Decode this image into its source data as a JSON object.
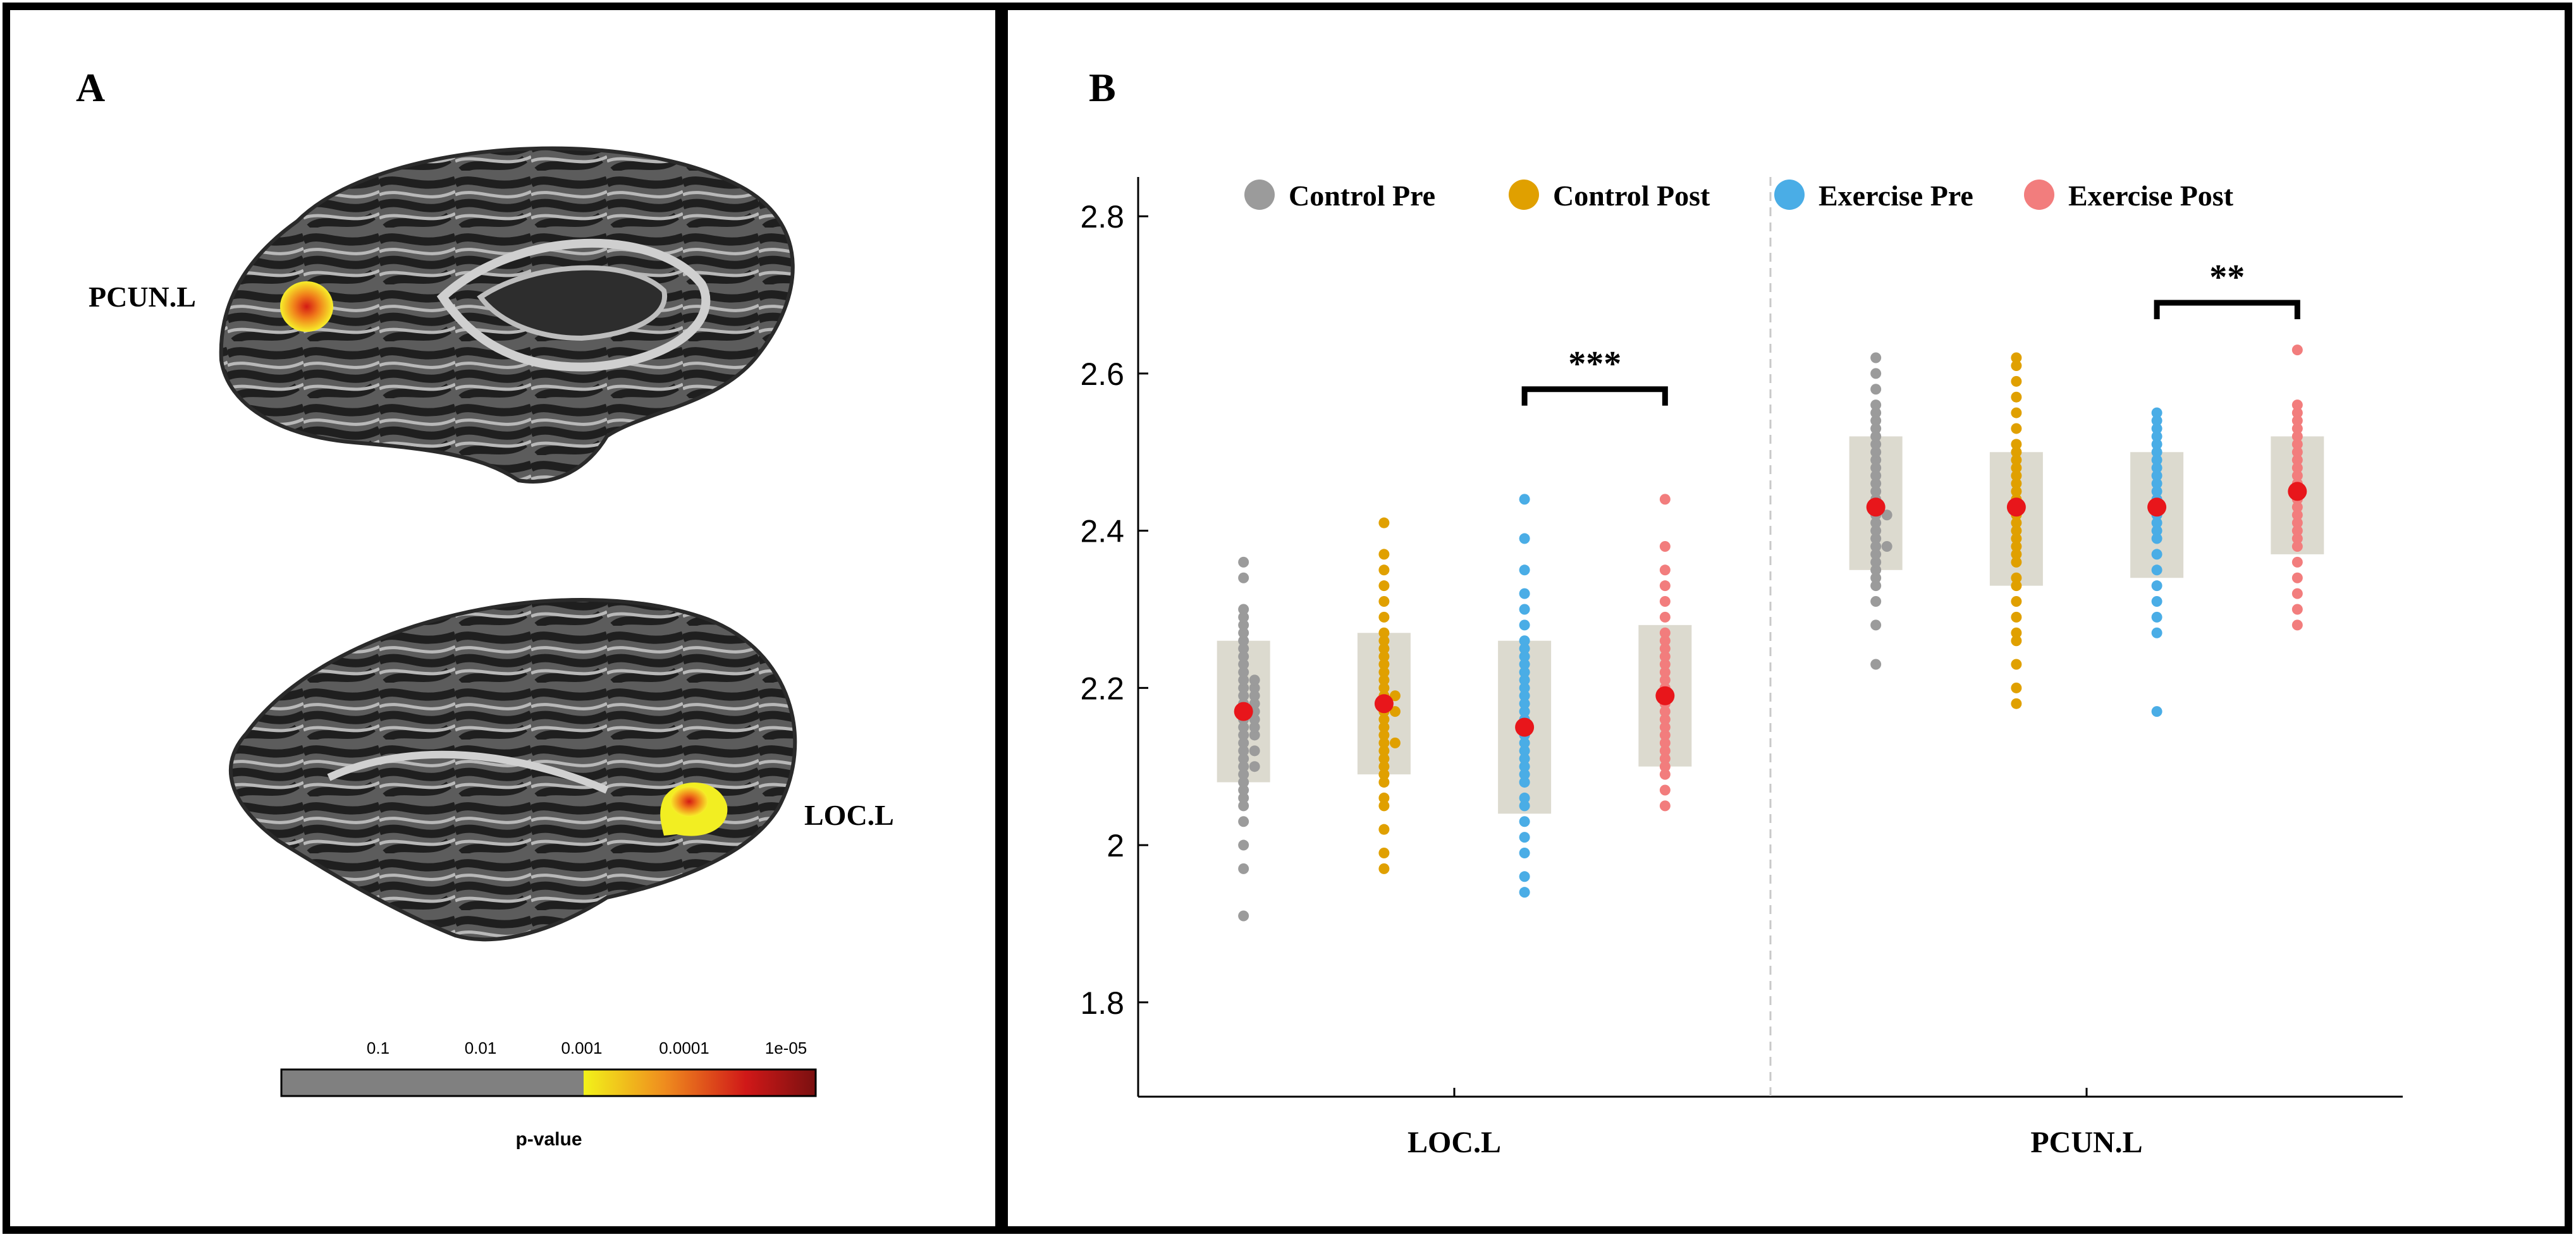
{
  "panel_a": {
    "label": "A",
    "region_top": "PCUN.L",
    "region_bottom": "LOC.L",
    "colorbar": {
      "ticks": [
        "0.1",
        "0.01",
        "0.001",
        "0.0001",
        "1e-05"
      ],
      "title": "p-value",
      "colors": {
        "gray": "#808080",
        "yellow": "#f2f21a",
        "orange": "#ef8c1e",
        "red": "#d01818",
        "darkred": "#7a1010"
      }
    }
  },
  "panel_b": {
    "label": "B"
  },
  "chart_data": {
    "type": "scatter",
    "subtype": "dot-strip with mean and interval box",
    "title": "",
    "xlabel": "",
    "ylabel": "",
    "categories": [
      "LOC.L",
      "PCUN.L"
    ],
    "ylim": [
      1.68,
      2.85
    ],
    "yticks": [
      1.8,
      2,
      2.2,
      2.4,
      2.6,
      2.8
    ],
    "ytick_labels": [
      "1.8",
      "2",
      "2.2",
      "2.4",
      "2.6",
      "2.8"
    ],
    "legend_position": "top",
    "mean_color": "#e8161b",
    "box_color": "#d6d3c7",
    "series": [
      {
        "name": "Control Pre",
        "color": "#9b9b9b",
        "groups": [
          {
            "category": "LOC.L",
            "mean": 2.17,
            "box": [
              2.08,
              2.26
            ],
            "points": [
              1.91,
              1.97,
              2.0,
              2.03,
              2.05,
              2.06,
              2.07,
              2.08,
              2.09,
              2.1,
              2.1,
              2.11,
              2.12,
              2.12,
              2.13,
              2.14,
              2.14,
              2.15,
              2.15,
              2.16,
              2.16,
              2.17,
              2.17,
              2.18,
              2.18,
              2.19,
              2.19,
              2.2,
              2.2,
              2.21,
              2.21,
              2.22,
              2.23,
              2.24,
              2.25,
              2.26,
              2.27,
              2.28,
              2.29,
              2.3,
              2.34,
              2.36
            ]
          },
          {
            "category": "PCUN.L",
            "mean": 2.43,
            "box": [
              2.35,
              2.52
            ],
            "points": [
              2.23,
              2.28,
              2.31,
              2.33,
              2.34,
              2.35,
              2.36,
              2.37,
              2.38,
              2.38,
              2.39,
              2.4,
              2.41,
              2.42,
              2.42,
              2.43,
              2.44,
              2.45,
              2.46,
              2.47,
              2.48,
              2.49,
              2.5,
              2.51,
              2.52,
              2.53,
              2.54,
              2.55,
              2.56,
              2.58,
              2.6,
              2.62
            ]
          }
        ]
      },
      {
        "name": "Control Post",
        "color": "#e0a000",
        "groups": [
          {
            "category": "LOC.L",
            "mean": 2.18,
            "box": [
              2.09,
              2.27
            ],
            "points": [
              1.97,
              1.99,
              2.02,
              2.05,
              2.06,
              2.08,
              2.09,
              2.1,
              2.11,
              2.12,
              2.13,
              2.13,
              2.14,
              2.15,
              2.16,
              2.17,
              2.17,
              2.18,
              2.19,
              2.19,
              2.2,
              2.21,
              2.22,
              2.23,
              2.24,
              2.25,
              2.26,
              2.27,
              2.29,
              2.31,
              2.33,
              2.35,
              2.37,
              2.41
            ]
          },
          {
            "category": "PCUN.L",
            "mean": 2.43,
            "box": [
              2.33,
              2.5
            ],
            "points": [
              2.18,
              2.2,
              2.23,
              2.26,
              2.27,
              2.29,
              2.31,
              2.33,
              2.34,
              2.36,
              2.37,
              2.38,
              2.39,
              2.4,
              2.41,
              2.42,
              2.43,
              2.44,
              2.45,
              2.46,
              2.47,
              2.48,
              2.49,
              2.5,
              2.51,
              2.53,
              2.55,
              2.57,
              2.59,
              2.61,
              2.62
            ]
          }
        ]
      },
      {
        "name": "Exercise Pre",
        "color": "#4aade6",
        "groups": [
          {
            "category": "LOC.L",
            "mean": 2.15,
            "box": [
              2.04,
              2.26
            ],
            "points": [
              1.94,
              1.96,
              1.99,
              2.01,
              2.03,
              2.05,
              2.06,
              2.08,
              2.09,
              2.1,
              2.11,
              2.12,
              2.13,
              2.14,
              2.15,
              2.16,
              2.17,
              2.18,
              2.19,
              2.2,
              2.21,
              2.22,
              2.23,
              2.24,
              2.25,
              2.26,
              2.28,
              2.3,
              2.32,
              2.35,
              2.39,
              2.44
            ]
          },
          {
            "category": "PCUN.L",
            "mean": 2.43,
            "box": [
              2.34,
              2.5
            ],
            "points": [
              2.17,
              2.27,
              2.29,
              2.31,
              2.33,
              2.35,
              2.37,
              2.39,
              2.4,
              2.41,
              2.42,
              2.43,
              2.44,
              2.45,
              2.46,
              2.47,
              2.48,
              2.49,
              2.5,
              2.51,
              2.52,
              2.53,
              2.54,
              2.55
            ]
          }
        ]
      },
      {
        "name": "Exercise Post",
        "color": "#f27d7d",
        "groups": [
          {
            "category": "LOC.L",
            "mean": 2.19,
            "box": [
              2.1,
              2.28
            ],
            "points": [
              2.05,
              2.07,
              2.09,
              2.1,
              2.11,
              2.12,
              2.13,
              2.14,
              2.15,
              2.16,
              2.17,
              2.18,
              2.19,
              2.2,
              2.21,
              2.22,
              2.23,
              2.24,
              2.25,
              2.26,
              2.27,
              2.29,
              2.31,
              2.33,
              2.35,
              2.38,
              2.44
            ]
          },
          {
            "category": "PCUN.L",
            "mean": 2.45,
            "box": [
              2.37,
              2.52
            ],
            "points": [
              2.28,
              2.3,
              2.32,
              2.34,
              2.36,
              2.38,
              2.39,
              2.4,
              2.41,
              2.42,
              2.43,
              2.44,
              2.45,
              2.46,
              2.47,
              2.48,
              2.49,
              2.5,
              2.51,
              2.52,
              2.53,
              2.54,
              2.55,
              2.56,
              2.63
            ]
          }
        ]
      }
    ],
    "annotations": [
      {
        "category": "LOC.L",
        "from_series": "Exercise Pre",
        "to_series": "Exercise Post",
        "text": "***",
        "level": 2.58
      },
      {
        "category": "PCUN.L",
        "from_series": "Exercise Pre",
        "to_series": "Exercise Post",
        "text": "**",
        "level": 2.69
      }
    ]
  }
}
